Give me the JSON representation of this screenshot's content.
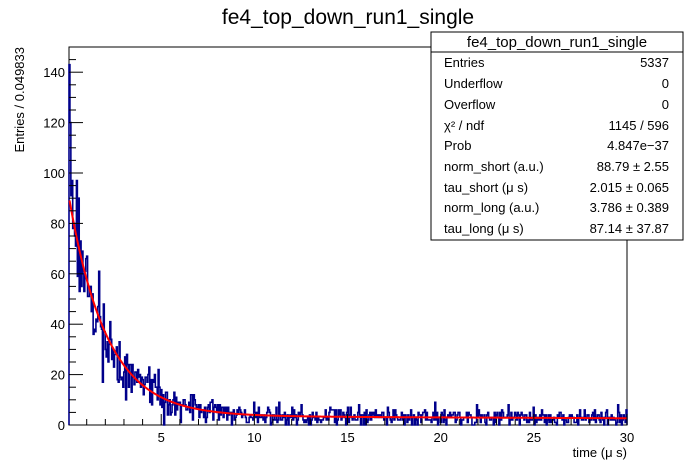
{
  "chart_data": {
    "type": "histogram",
    "title": "fe4_top_down_run1_single",
    "xlabel": "time (μ s)",
    "ylabel": "Entries / 0.049833",
    "xlim": [
      0.05,
      30
    ],
    "ylim": [
      0,
      150
    ],
    "x_ticks": [
      5,
      10,
      15,
      20,
      25,
      30
    ],
    "y_ticks": [
      0,
      20,
      40,
      60,
      80,
      100,
      120,
      140
    ],
    "bin_width": 0.049833,
    "histogram_color": "#00008b",
    "fit_color": "#ff0000",
    "fit": {
      "function": "norm_short*exp(-t/tau_short) + norm_long*exp(-t/tau_long)",
      "norm_short": 88.79,
      "tau_short": 2.015,
      "norm_long": 3.786,
      "tau_long": 87.14
    },
    "stats_box": {
      "title": "fe4_top_down_run1_single",
      "rows": [
        {
          "label": "Entries",
          "value": "5337"
        },
        {
          "label": "Underflow",
          "value": "0"
        },
        {
          "label": "Overflow",
          "value": "0"
        },
        {
          "label": "χ² / ndf",
          "value": "1145 / 596"
        },
        {
          "label": "Prob",
          "value": "4.847e−37"
        },
        {
          "label": "norm_short (a.u.)",
          "value": "88.79 ± 2.55"
        },
        {
          "label": "tau_short (μ s)",
          "value": "2.015 ± 0.065"
        },
        {
          "label": "norm_long (a.u.)",
          "value": "3.786 ± 0.389"
        },
        {
          "label": "tau_long (μ s)",
          "value": "87.14 ± 37.87"
        }
      ]
    }
  }
}
